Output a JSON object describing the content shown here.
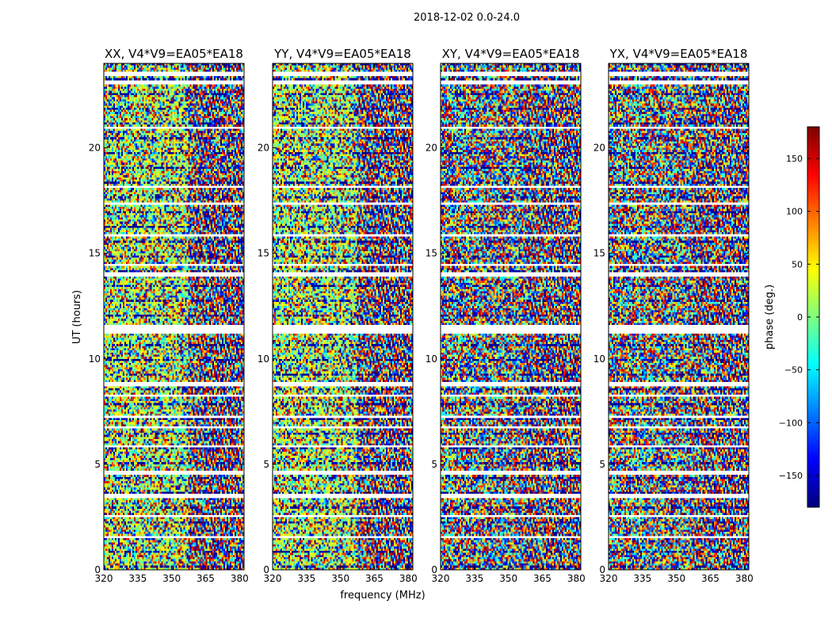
{
  "figure": {
    "suptitle": "2018-12-02 0.0-24.0",
    "shared_xlabel": "frequency (MHz)",
    "shared_ylabel": "UT (hours)"
  },
  "colorbar": {
    "label": "phase (deg.)",
    "ticks": [
      150,
      100,
      50,
      0,
      -50,
      -100,
      -150
    ],
    "tick_labels": [
      "150",
      "100",
      "50",
      "0",
      "−50",
      "−100",
      "−150"
    ],
    "range": [
      -180,
      180
    ],
    "colormap": "jet",
    "colors": [
      "#00007f",
      "#0000ff",
      "#007fff",
      "#00ffff",
      "#7fff7f",
      "#ffff00",
      "#ff7f00",
      "#ff0000",
      "#7f0000"
    ]
  },
  "chart_data": [
    {
      "type": "heatmap",
      "title": "XX, V4*V9=EA05*EA18",
      "xlabel": "frequency (MHz)",
      "ylabel": "UT (hours)",
      "xlim": [
        320,
        382
      ],
      "ylim": [
        0,
        24
      ],
      "xticks": [
        320,
        335,
        350,
        365,
        380
      ],
      "yticks": [
        0,
        5,
        10,
        15,
        20
      ],
      "z_quantity": "phase (deg.)",
      "z_range": [
        -180,
        180
      ],
      "flagged_ut_bands": [
        [
          0.35,
          0.45
        ],
        [
          1.5,
          1.6
        ],
        [
          2.45,
          2.6
        ],
        [
          3.4,
          3.6
        ],
        [
          4.55,
          4.65
        ],
        [
          5.8,
          5.9
        ],
        [
          6.65,
          6.8
        ],
        [
          7.2,
          7.35
        ],
        [
          8.2,
          8.3
        ],
        [
          8.75,
          8.9
        ],
        [
          11.25,
          11.55
        ],
        [
          13.95,
          14.1
        ],
        [
          14.4,
          14.5
        ],
        [
          15.8,
          15.9
        ],
        [
          17.35,
          17.45
        ],
        [
          18.1,
          18.2
        ],
        [
          20.9,
          21.0
        ],
        [
          23.05,
          23.2
        ],
        [
          23.45,
          23.6
        ]
      ]
    },
    {
      "type": "heatmap",
      "title": "YY, V4*V9=EA05*EA18",
      "xlabel": "frequency (MHz)",
      "ylabel": "UT (hours)",
      "xlim": [
        320,
        382
      ],
      "ylim": [
        0,
        24
      ],
      "xticks": [
        320,
        335,
        350,
        365,
        380
      ],
      "yticks": [
        0,
        5,
        10,
        15,
        20
      ],
      "z_quantity": "phase (deg.)",
      "z_range": [
        -180,
        180
      ],
      "flagged_ut_bands": [
        [
          0.35,
          0.45
        ],
        [
          1.5,
          1.6
        ],
        [
          2.45,
          2.6
        ],
        [
          3.4,
          3.6
        ],
        [
          4.55,
          4.65
        ],
        [
          5.8,
          5.9
        ],
        [
          6.65,
          6.8
        ],
        [
          7.2,
          7.35
        ],
        [
          8.2,
          8.3
        ],
        [
          8.75,
          8.9
        ],
        [
          11.25,
          11.55
        ],
        [
          13.95,
          14.1
        ],
        [
          14.4,
          14.5
        ],
        [
          15.8,
          15.9
        ],
        [
          17.35,
          17.45
        ],
        [
          18.1,
          18.2
        ],
        [
          20.9,
          21.0
        ],
        [
          23.05,
          23.2
        ],
        [
          23.45,
          23.6
        ]
      ]
    },
    {
      "type": "heatmap",
      "title": "XY, V4*V9=EA05*EA18",
      "xlabel": "frequency (MHz)",
      "ylabel": "UT (hours)",
      "xlim": [
        320,
        382
      ],
      "ylim": [
        0,
        24
      ],
      "xticks": [
        320,
        335,
        350,
        365,
        380
      ],
      "yticks": [
        0,
        5,
        10,
        15,
        20
      ],
      "z_quantity": "phase (deg.)",
      "z_range": [
        -180,
        180
      ],
      "flagged_ut_bands": [
        [
          0.35,
          0.45
        ],
        [
          1.5,
          1.6
        ],
        [
          2.45,
          2.6
        ],
        [
          3.4,
          3.6
        ],
        [
          4.55,
          4.65
        ],
        [
          5.8,
          5.9
        ],
        [
          6.65,
          6.8
        ],
        [
          7.2,
          7.35
        ],
        [
          8.2,
          8.3
        ],
        [
          8.75,
          8.9
        ],
        [
          11.25,
          11.55
        ],
        [
          13.95,
          14.1
        ],
        [
          14.4,
          14.5
        ],
        [
          15.8,
          15.9
        ],
        [
          17.35,
          17.45
        ],
        [
          18.1,
          18.2
        ],
        [
          20.9,
          21.0
        ],
        [
          23.05,
          23.2
        ],
        [
          23.45,
          23.6
        ]
      ]
    },
    {
      "type": "heatmap",
      "title": "YX, V4*V9=EA05*EA18",
      "xlabel": "frequency (MHz)",
      "ylabel": "UT (hours)",
      "xlim": [
        320,
        382
      ],
      "ylim": [
        0,
        24
      ],
      "xticks": [
        320,
        335,
        350,
        365,
        380
      ],
      "yticks": [
        0,
        5,
        10,
        15,
        20
      ],
      "z_quantity": "phase (deg.)",
      "z_range": [
        -180,
        180
      ],
      "flagged_ut_bands": [
        [
          0.35,
          0.45
        ],
        [
          1.5,
          1.6
        ],
        [
          2.45,
          2.6
        ],
        [
          3.4,
          3.6
        ],
        [
          4.55,
          4.65
        ],
        [
          5.8,
          5.9
        ],
        [
          6.65,
          6.8
        ],
        [
          7.2,
          7.35
        ],
        [
          8.2,
          8.3
        ],
        [
          8.75,
          8.9
        ],
        [
          11.25,
          11.55
        ],
        [
          13.95,
          14.1
        ],
        [
          14.4,
          14.5
        ],
        [
          15.8,
          15.9
        ],
        [
          17.35,
          17.45
        ],
        [
          18.1,
          18.2
        ],
        [
          20.9,
          21.0
        ],
        [
          23.05,
          23.2
        ],
        [
          23.45,
          23.6
        ]
      ]
    }
  ]
}
